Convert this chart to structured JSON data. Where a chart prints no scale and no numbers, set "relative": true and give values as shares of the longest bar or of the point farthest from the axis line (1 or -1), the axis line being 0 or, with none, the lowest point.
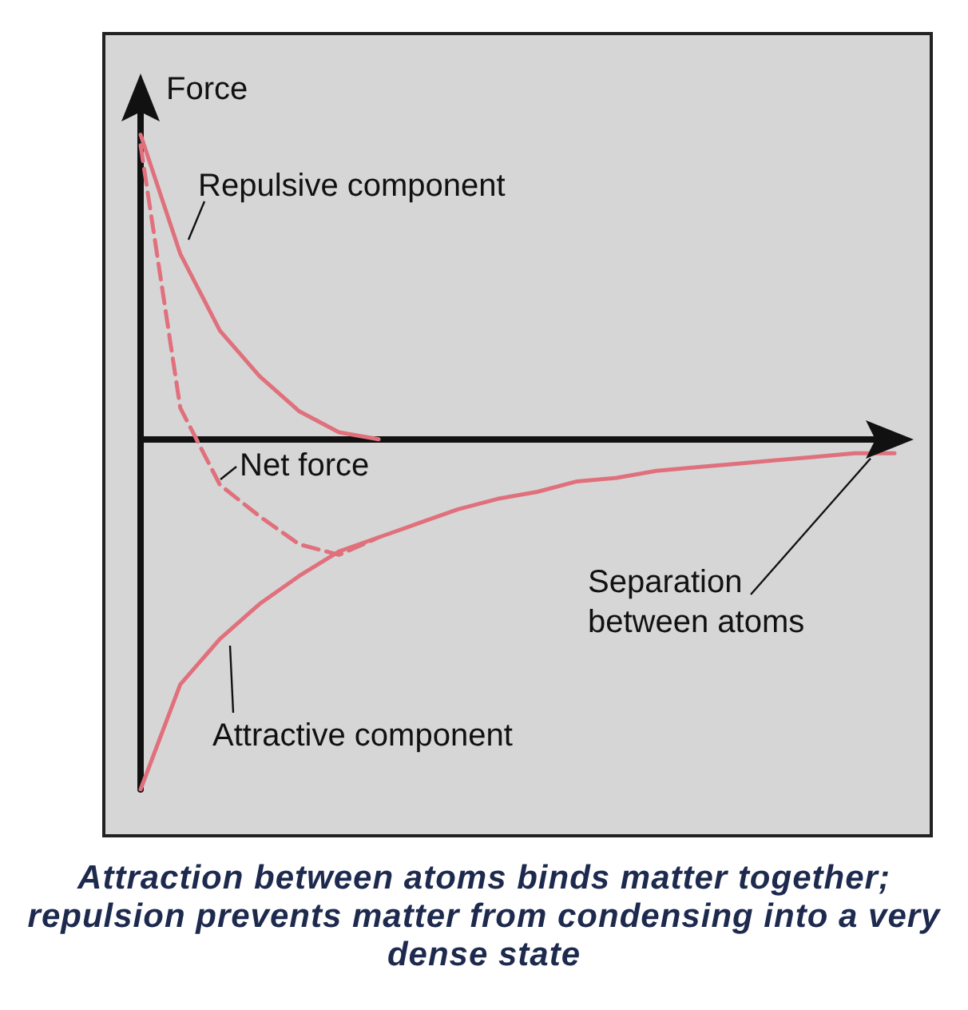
{
  "chart_data": {
    "type": "line",
    "relative": true,
    "xlabel": "Separation between atoms",
    "ylabel": "Force",
    "categories": [
      null,
      null,
      null,
      null,
      null,
      null,
      null,
      null,
      null,
      null,
      null,
      null,
      null,
      null,
      null,
      null,
      null,
      null,
      null,
      null
    ],
    "series": [
      {
        "name": "Repulsive component",
        "color": "#e0707c",
        "line_style": "solid",
        "values": [
          0.87,
          0.53,
          0.31,
          0.18,
          0.08,
          0.02,
          0,
          null,
          null,
          null,
          null,
          null,
          null,
          null,
          null,
          null,
          null,
          null,
          null,
          null
        ]
      },
      {
        "name": "Net force",
        "color": "#e0707c",
        "line_style": "dashed",
        "values": [
          0.84,
          0.09,
          -0.13,
          -0.22,
          -0.3,
          -0.33,
          -0.28,
          null,
          null,
          null,
          null,
          null,
          null,
          null,
          null,
          null,
          null,
          null,
          null,
          null
        ]
      },
      {
        "name": "Attractive component",
        "color": "#e0707c",
        "line_style": "solid",
        "values": [
          -1,
          -0.7,
          -0.57,
          -0.47,
          -0.39,
          -0.32,
          -0.28,
          -0.24,
          -0.2,
          -0.17,
          -0.15,
          -0.12,
          -0.11,
          -0.09,
          -0.08,
          -0.07,
          -0.06,
          -0.05,
          -0.04,
          -0.04
        ]
      }
    ],
    "marker": "none",
    "legend": false,
    "grid": false,
    "tick_labels": false,
    "annotations": [
      "Attraction between atoms binds matter together; repulsion prevents matter from condensing into a very dense state"
    ]
  }
}
